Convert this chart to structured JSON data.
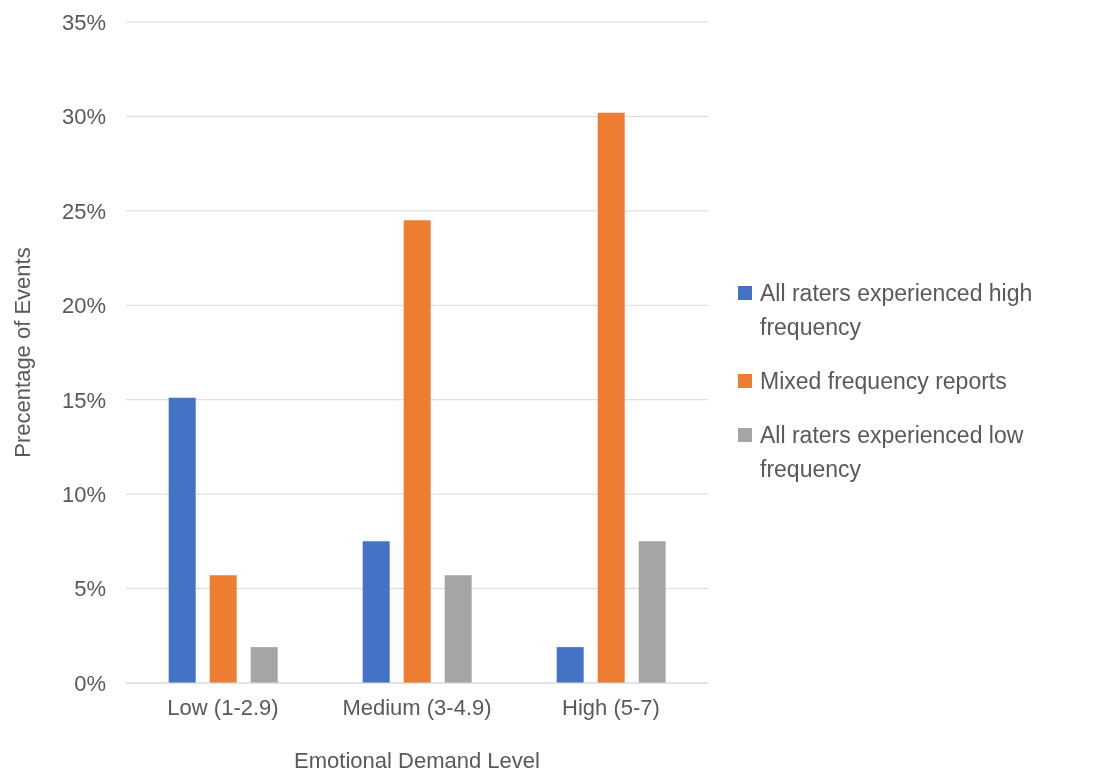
{
  "chart_data": {
    "type": "bar",
    "xlabel": "Emotional Demand Level",
    "ylabel": "Precentage of Events",
    "categories": [
      "Low (1-2.9)",
      "Medium (3-4.9)",
      "High (5-7)"
    ],
    "series": [
      {
        "name": "All raters experienced high frequency",
        "color": "#4472c4",
        "values": [
          15.1,
          7.5,
          1.9
        ]
      },
      {
        "name": "Mixed frequency reports",
        "color": "#ed7d31",
        "values": [
          5.7,
          24.5,
          30.2
        ]
      },
      {
        "name": "All raters experienced low frequency",
        "color": "#a5a5a5",
        "values": [
          1.9,
          5.7,
          7.5
        ]
      }
    ],
    "ylim": [
      0,
      35
    ],
    "yticks": [
      {
        "value": 0,
        "label": "0%"
      },
      {
        "value": 5,
        "label": "5%"
      },
      {
        "value": 10,
        "label": "10%"
      },
      {
        "value": 15,
        "label": "15%"
      },
      {
        "value": 20,
        "label": "20%"
      },
      {
        "value": 25,
        "label": "25%"
      },
      {
        "value": 30,
        "label": "30%"
      },
      {
        "value": 35,
        "label": "35%"
      }
    ],
    "grid": "y",
    "legend": "right"
  }
}
